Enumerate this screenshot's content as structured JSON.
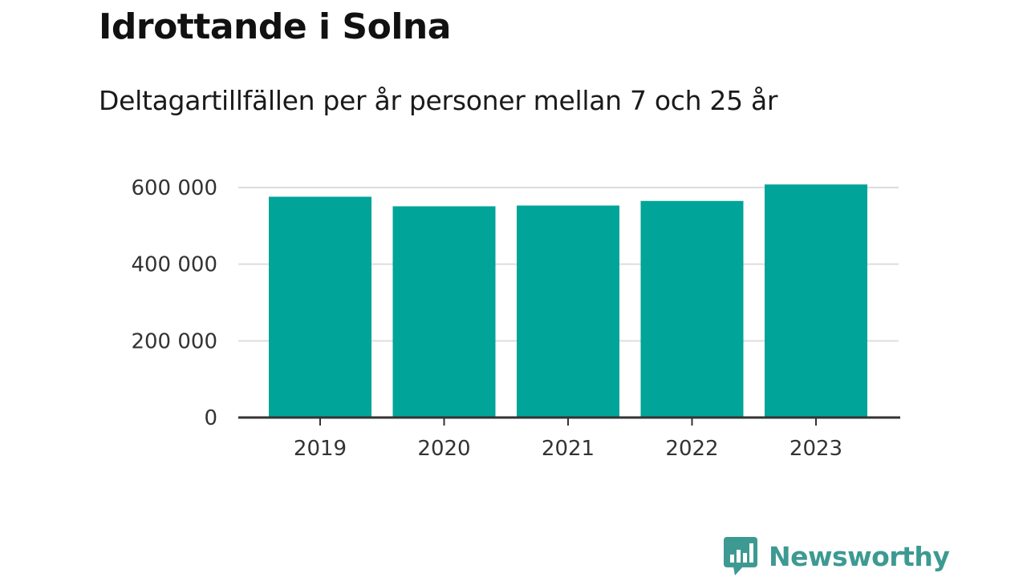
{
  "header": {
    "title": "Idrottande i Solna",
    "subtitle": "Deltagartillfällen per år personer mellan 7 och 25 år"
  },
  "brand": {
    "name": "Newsworthy",
    "logo_icon": "bar-chart-speech-bubble-icon",
    "color": "#3d9a92"
  },
  "chart_data": {
    "type": "bar",
    "title": "Idrottande i Solna",
    "subtitle": "Deltagartillfällen per år personer mellan 7 och 25 år",
    "categories": [
      "2019",
      "2020",
      "2021",
      "2022",
      "2023"
    ],
    "values": [
      576000,
      551000,
      553000,
      565000,
      608000
    ],
    "ylim": [
      0,
      600000
    ],
    "yticks": [
      0,
      200000,
      400000,
      600000
    ],
    "ytick_labels": [
      "0",
      "200 000",
      "400 000",
      "600 000"
    ],
    "xlabel": "",
    "ylabel": "",
    "grid": true,
    "bar_color": "#00a499",
    "grid_color": "#dddddd",
    "axis_color": "#333333"
  }
}
